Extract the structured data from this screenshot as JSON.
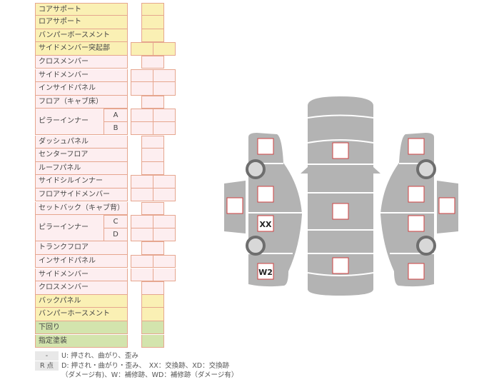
{
  "rows": [
    {
      "label": "コアサポート",
      "color": "yellow",
      "cells": 1
    },
    {
      "label": "ロアサポート",
      "color": "yellow",
      "cells": 1
    },
    {
      "label": "バンパーボースメント",
      "color": "yellow",
      "cells": 1
    },
    {
      "label": "サイドメンバー突起部",
      "color": "yellow",
      "cells": 2
    },
    {
      "label": "クロスメンバー",
      "color": "pink",
      "cells": 1
    },
    {
      "label": "サイドメンバー",
      "color": "pink",
      "cells": 2
    },
    {
      "label": "インサイドパネル",
      "color": "pink",
      "cells": 2
    },
    {
      "label": "フロア（キャブ床）",
      "color": "pink",
      "cells": 1
    },
    {
      "label": "ピラーインナー",
      "color": "pink",
      "cells": 2,
      "sub": "A",
      "span": 2
    },
    {
      "label": "",
      "color": "pink",
      "cells": 2,
      "sub": "B",
      "cont": true
    },
    {
      "label": "ダッシュパネル",
      "color": "pink",
      "cells": 1
    },
    {
      "label": "センターフロア",
      "color": "pink",
      "cells": 1
    },
    {
      "label": "ルーフパネル",
      "color": "pink",
      "cells": 1
    },
    {
      "label": "サイドシルインナー",
      "color": "pink",
      "cells": 2
    },
    {
      "label": "フロアサイドメンバー",
      "color": "pink",
      "cells": 2
    },
    {
      "label": "セットバック（キャブ背）",
      "color": "pink",
      "cells": 1
    },
    {
      "label": "ピラーインナー",
      "color": "pink",
      "cells": 2,
      "sub": "C",
      "span": 2
    },
    {
      "label": "",
      "color": "pink",
      "cells": 2,
      "sub": "D",
      "cont": true
    },
    {
      "label": "トランクフロア",
      "color": "pink",
      "cells": 1
    },
    {
      "label": "インサイドパネル",
      "color": "pink",
      "cells": 2
    },
    {
      "label": "サイドメンバー",
      "color": "pink",
      "cells": 2
    },
    {
      "label": "クロスメンバー",
      "color": "pink",
      "cells": 1
    },
    {
      "label": "バックパネル",
      "color": "yellow",
      "cells": 1
    },
    {
      "label": "バンパーホースメント",
      "color": "yellow",
      "cells": 1
    },
    {
      "label": "下回り",
      "color": "green",
      "cells": 1
    },
    {
      "label": "指定塗装",
      "color": "green",
      "cells": 1
    }
  ],
  "legend": {
    "key1": "-",
    "text1": "U: 押され、曲がり、歪み",
    "key2": "R 点",
    "text2": "D: 押され・曲がり・歪み、　XX：交換跡、XD：交換跡",
    "text3": "（ダメージ有)、W：補修跡、WD：補修跡（ダメージ有）"
  },
  "diagram": {
    "marks": {
      "left_door_rear": "XX",
      "left_rear": "W2"
    }
  },
  "colors": {
    "yellow": "#faf0b4",
    "pink": "#fdeef0",
    "green": "#d3e4ad",
    "border": "#e6a68f",
    "body": "#b3b3b3",
    "mark": "#d04040"
  }
}
